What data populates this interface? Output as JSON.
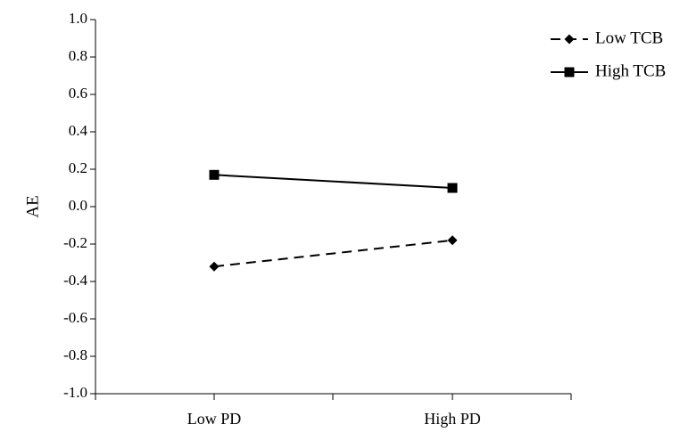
{
  "chart_data": {
    "type": "line",
    "categories": [
      "Low PD",
      "High PD"
    ],
    "ylabel": "AE",
    "xlabel": "",
    "ylim": [
      -1.0,
      1.0
    ],
    "yticks": [
      "-1.0",
      "-0.8",
      "-0.6",
      "-0.4",
      "-0.2",
      "0.0",
      "0.2",
      "0.4",
      "0.6",
      "0.8",
      "1.0"
    ],
    "grid": false,
    "legend_position": "top-right",
    "series": [
      {
        "name": "Low TCB",
        "values": [
          -0.32,
          -0.18
        ],
        "line_style": "dashed",
        "marker": "diamond",
        "color": "#000000"
      },
      {
        "name": "High TCB",
        "values": [
          0.17,
          0.1
        ],
        "line_style": "solid",
        "marker": "square",
        "color": "#000000"
      }
    ]
  }
}
